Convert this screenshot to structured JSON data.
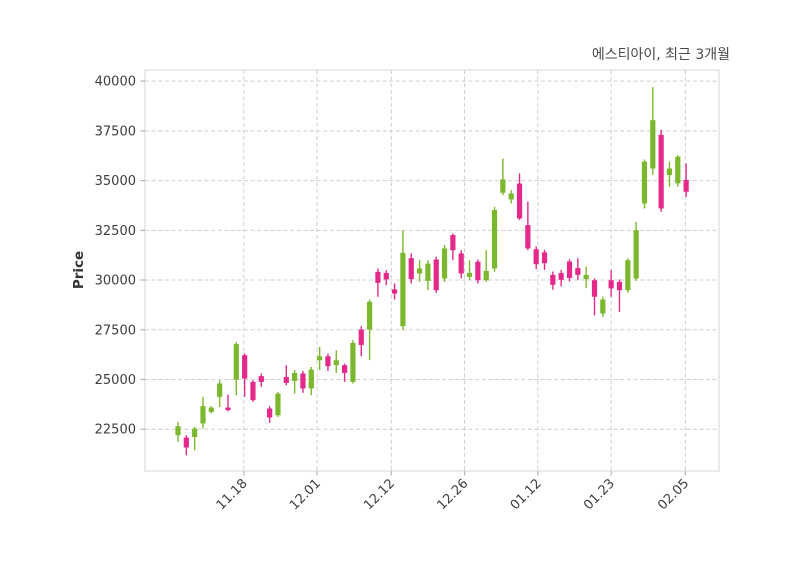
{
  "title": "에스티아이, 최근 3개월",
  "chart_data": {
    "type": "candlestick",
    "title": "에스티아이, 최근 3개월",
    "xlabel": "",
    "ylabel": "Price",
    "ylim": [
      20400,
      40560
    ],
    "grid": true,
    "grid_style": "dashed",
    "up_color": "#7CB82E",
    "down_color": "#E4298A",
    "grid_color": "#cfcfcf",
    "spine_color": "#dcdcdc",
    "tick_color": "#b5b5b5",
    "tick_label_color": "#3d3d3d",
    "title_color": "#4a4a4a",
    "y_ticks": [
      22500,
      25000,
      27500,
      30000,
      32500,
      35000,
      37500,
      40000
    ],
    "x_ticks": [
      {
        "label": "11.18",
        "i": 7.9
      },
      {
        "label": "12.01",
        "i": 16.7
      },
      {
        "label": "12.12",
        "i": 25.6
      },
      {
        "label": "12.26",
        "i": 34.4
      },
      {
        "label": "01.12",
        "i": 43.2
      },
      {
        "label": "01.23",
        "i": 52.0
      },
      {
        "label": "02.05",
        "i": 60.9
      }
    ],
    "ohlc_columns": [
      "open",
      "high",
      "low",
      "close"
    ],
    "ohlc": [
      [
        22200,
        22870,
        21860,
        22650
      ],
      [
        22080,
        22200,
        21190,
        21580
      ],
      [
        22110,
        22620,
        21440,
        22530
      ],
      [
        22790,
        24130,
        22530,
        23660
      ],
      [
        23370,
        23660,
        23290,
        23590
      ],
      [
        24130,
        24960,
        23620,
        24800
      ],
      [
        23590,
        24240,
        23400,
        23460
      ],
      [
        25000,
        26890,
        24210,
        26780
      ],
      [
        26220,
        26310,
        24130,
        25050
      ],
      [
        24880,
        24960,
        23880,
        23960
      ],
      [
        25170,
        25300,
        24630,
        24880
      ],
      [
        23540,
        23660,
        22820,
        23090
      ],
      [
        23200,
        24380,
        23120,
        24290
      ],
      [
        25130,
        25720,
        24710,
        24830
      ],
      [
        24930,
        25470,
        24290,
        25330
      ],
      [
        25300,
        25430,
        24330,
        24550
      ],
      [
        24550,
        25630,
        24210,
        25500
      ],
      [
        25970,
        26640,
        25470,
        26170
      ],
      [
        26170,
        26300,
        25430,
        25670
      ],
      [
        25720,
        26470,
        25330,
        25970
      ],
      [
        25720,
        25800,
        24880,
        25330
      ],
      [
        24880,
        26980,
        24800,
        26840
      ],
      [
        27510,
        27680,
        26170,
        26730
      ],
      [
        27510,
        29020,
        25970,
        28910
      ],
      [
        30410,
        30580,
        29160,
        29860
      ],
      [
        30360,
        30500,
        29740,
        30030
      ],
      [
        29530,
        29830,
        29020,
        29320
      ],
      [
        27680,
        32500,
        27480,
        31370
      ],
      [
        31100,
        31340,
        29830,
        30050
      ],
      [
        30330,
        31000,
        29910,
        30580
      ],
      [
        29960,
        31000,
        29490,
        30830
      ],
      [
        31030,
        31170,
        29360,
        29490
      ],
      [
        30080,
        31760,
        29910,
        31590
      ],
      [
        32260,
        32340,
        31000,
        31500
      ],
      [
        31340,
        31500,
        30080,
        30330
      ],
      [
        30160,
        31000,
        29990,
        30360
      ],
      [
        30920,
        31030,
        29830,
        29990
      ],
      [
        29990,
        31500,
        29910,
        30460
      ],
      [
        30580,
        33680,
        30410,
        33520
      ],
      [
        34390,
        36110,
        34270,
        35060
      ],
      [
        34050,
        34520,
        33850,
        34350
      ],
      [
        34850,
        35360,
        33010,
        33100
      ],
      [
        32760,
        33940,
        31500,
        31590
      ],
      [
        31550,
        31690,
        30550,
        30800
      ],
      [
        31390,
        31520,
        30510,
        30850
      ],
      [
        30260,
        30430,
        29510,
        29760
      ],
      [
        30350,
        30510,
        29680,
        30010
      ],
      [
        30930,
        31050,
        29930,
        30100
      ],
      [
        30600,
        31100,
        30010,
        30260
      ],
      [
        30050,
        30680,
        29590,
        30260
      ],
      [
        29990,
        30080,
        28230,
        29160
      ],
      [
        28320,
        29160,
        28150,
        29020
      ],
      [
        29990,
        30500,
        29160,
        29580
      ],
      [
        29910,
        30030,
        28400,
        29490
      ],
      [
        29490,
        31090,
        29360,
        31000
      ],
      [
        30080,
        32930,
        29960,
        32510
      ],
      [
        33850,
        36060,
        33600,
        35950
      ],
      [
        35610,
        39700,
        35280,
        38040
      ],
      [
        37300,
        37550,
        33430,
        33600
      ],
      [
        35280,
        35950,
        34690,
        35610
      ],
      [
        34860,
        36280,
        34690,
        36200
      ],
      [
        35030,
        35860,
        34190,
        34440
      ]
    ]
  }
}
